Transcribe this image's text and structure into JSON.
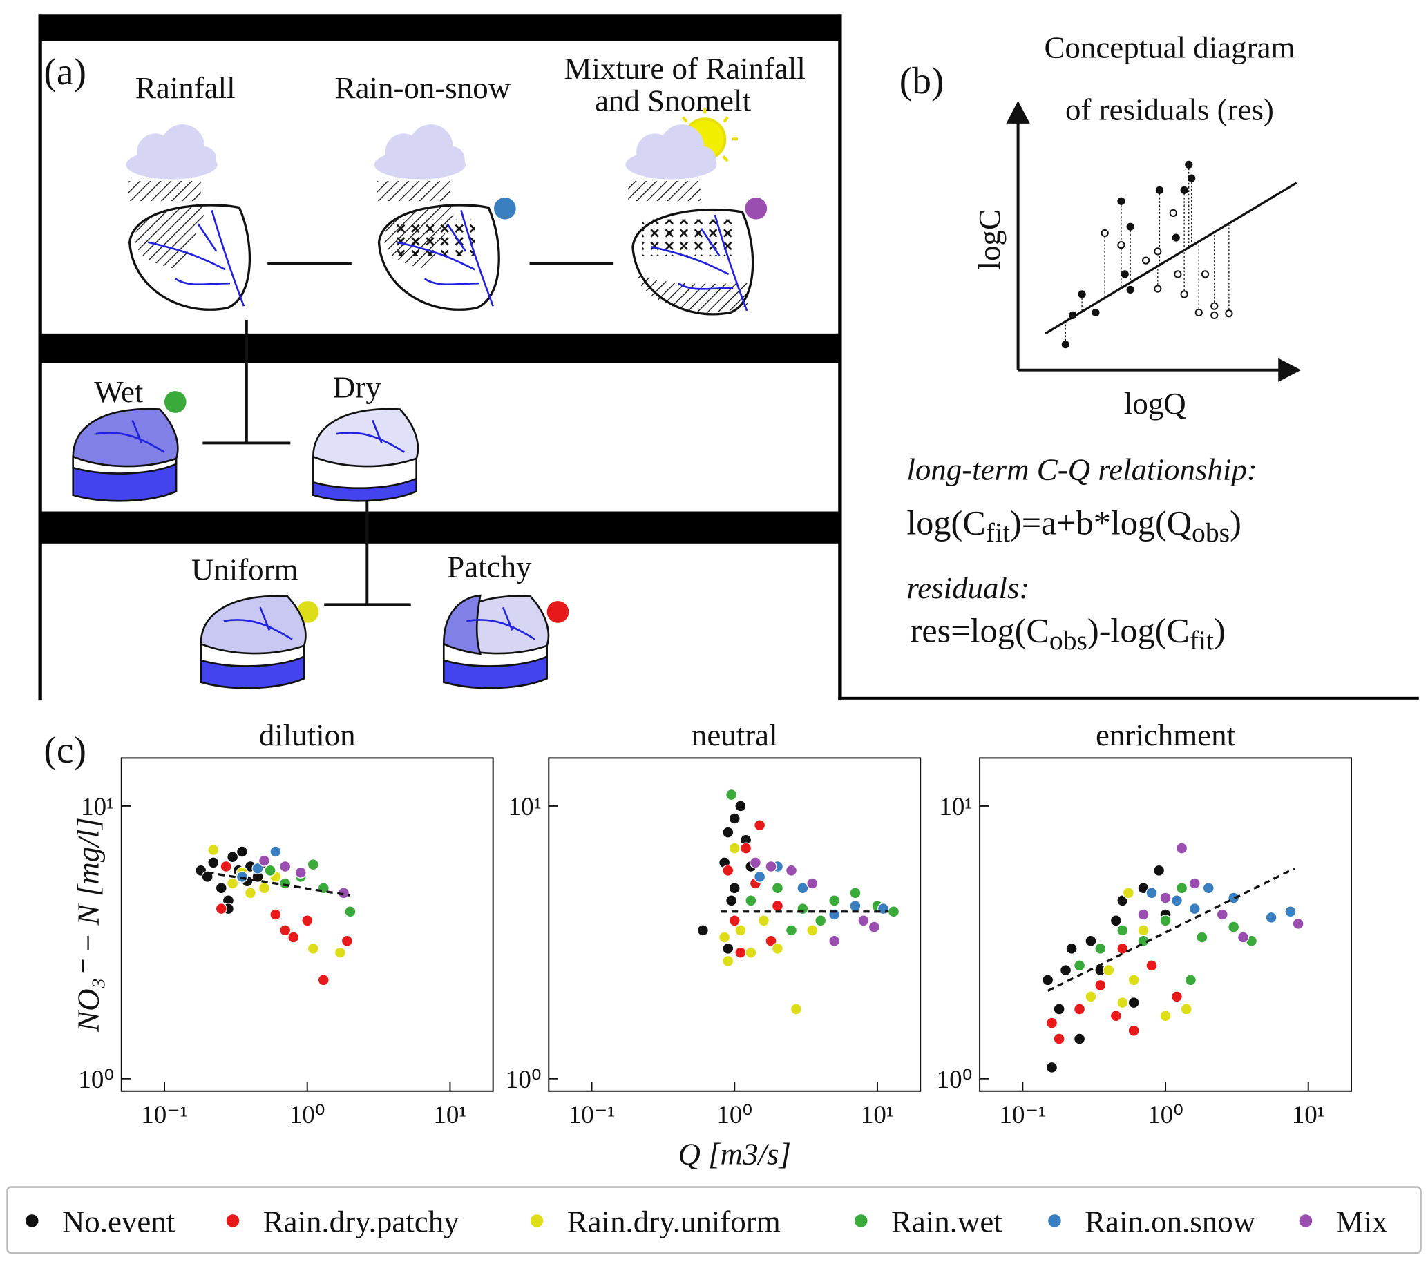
{
  "panel_a": {
    "label": "(a)",
    "rainfall": "Rainfall",
    "rain_on_snow": "Rain-on-snow",
    "mixture_line1": "Mixture of Rainfall",
    "mixture_line2": "and Snomelt",
    "wet": "Wet",
    "dry": "Dry",
    "uniform": "Uniform",
    "patchy": "Patchy"
  },
  "panel_b": {
    "label": "(b)",
    "title_line1": "Conceptual diagram",
    "title_line2": "of residuals (res)",
    "ylabel": "logC",
    "xlabel": "logQ",
    "relationship_label": "long-term C-Q relationship:",
    "relationship": [
      "log(C",
      "fit",
      ")=a+b*log(Q",
      "obs",
      ")"
    ],
    "residuals_label": "residuals:",
    "residuals": [
      "res=log(C",
      "obs",
      ")-log(C",
      "fit",
      ")"
    ]
  },
  "panel_c": {
    "label": "(c)"
  },
  "chart_data": [
    {
      "type": "scatter",
      "title": "dilution",
      "ylabel": "NO₃⁻ − N [mg/l]",
      "xscale": "log",
      "yscale": "log",
      "xlim": [
        0.05,
        20
      ],
      "ylim": [
        0.9,
        15
      ],
      "xticks": [
        {
          "value": 0.1,
          "label": "10⁻¹"
        },
        {
          "value": 1,
          "label": "10⁰"
        },
        {
          "value": 10,
          "label": "10¹"
        }
      ],
      "yticks": [
        {
          "value": 1,
          "label": "10⁰"
        },
        {
          "value": 10,
          "label": "10¹"
        }
      ],
      "fit": {
        "x": [
          0.2,
          2
        ],
        "y": [
          5.7,
          4.7
        ]
      },
      "series": [
        {
          "name": "No.event",
          "color": "#111111",
          "x": [
            0.18,
            0.2,
            0.22,
            0.25,
            0.28,
            0.3,
            0.33,
            0.35,
            0.38,
            0.4,
            0.45,
            0.5,
            0.28
          ],
          "y": [
            5.8,
            5.5,
            6.2,
            5.0,
            4.5,
            6.5,
            5.8,
            6.8,
            5.3,
            6.0,
            5.5,
            6.2,
            4.2
          ]
        },
        {
          "name": "Rain.dry.patchy",
          "color": "#e8191b",
          "x": [
            0.25,
            0.27,
            0.6,
            0.7,
            0.8,
            1.0,
            1.3,
            1.9
          ],
          "y": [
            4.2,
            6.0,
            4.0,
            3.5,
            3.3,
            3.8,
            2.3,
            3.2
          ]
        },
        {
          "name": "Rain.dry.uniform",
          "color": "#dddd1a",
          "x": [
            0.22,
            0.3,
            0.4,
            0.5,
            0.6,
            1.1,
            1.7,
            0.35
          ],
          "y": [
            6.9,
            5.2,
            4.8,
            5.0,
            5.5,
            3.0,
            2.9,
            5.7
          ]
        },
        {
          "name": "Rain.wet",
          "color": "#3aaa3a",
          "x": [
            0.55,
            0.7,
            0.9,
            1.1,
            1.3,
            2.0
          ],
          "y": [
            5.8,
            5.2,
            5.5,
            6.1,
            5.0,
            4.1
          ]
        },
        {
          "name": "Rain.on.snow",
          "color": "#3a80c0",
          "x": [
            0.6,
            0.45,
            0.35
          ],
          "y": [
            6.8,
            5.9,
            5.5
          ]
        },
        {
          "name": "Mix",
          "color": "#9a4fb0",
          "x": [
            0.5,
            0.7,
            0.9,
            1.8
          ],
          "y": [
            6.3,
            6.0,
            5.7,
            4.8
          ]
        }
      ]
    },
    {
      "type": "scatter",
      "title": "neutral",
      "xlabel": "Q [m3/s]",
      "xscale": "log",
      "yscale": "log",
      "xlim": [
        0.05,
        20
      ],
      "ylim": [
        0.9,
        15
      ],
      "xticks": [
        {
          "value": 0.1,
          "label": "10⁻¹"
        },
        {
          "value": 1,
          "label": "10⁰"
        },
        {
          "value": 10,
          "label": "10¹"
        }
      ],
      "yticks": [
        {
          "value": 1,
          "label": "10⁰"
        },
        {
          "value": 10,
          "label": "10¹"
        }
      ],
      "fit": {
        "x": [
          0.8,
          12
        ],
        "y": [
          4.1,
          4.1
        ]
      },
      "series": [
        {
          "x": [
            0.6,
            0.85,
            0.9,
            1.0,
            1.1,
            1.2,
            1.0,
            0.9,
            1.3,
            0.95
          ],
          "y": [
            3.5,
            6.2,
            8.0,
            9.0,
            10.0,
            7.5,
            5.0,
            3.0,
            6.0,
            4.5
          ]
        },
        {
          "x": [
            0.9,
            1.0,
            1.2,
            1.5,
            1.8,
            2.0,
            1.1,
            1.4
          ],
          "y": [
            5.8,
            3.8,
            7.0,
            8.5,
            3.2,
            4.3,
            2.9,
            5.2
          ]
        },
        {
          "x": [
            0.85,
            0.9,
            1.0,
            1.1,
            1.3,
            1.6,
            2.0,
            2.7,
            3.5
          ],
          "y": [
            3.3,
            2.7,
            7.0,
            3.5,
            2.9,
            3.8,
            3.0,
            1.8,
            3.5
          ]
        },
        {
          "x": [
            0.95,
            1.3,
            2,
            3,
            4,
            5,
            7,
            10,
            13,
            2.5
          ],
          "y": [
            11.0,
            4.5,
            5.0,
            4.2,
            3.8,
            4.5,
            4.8,
            4.3,
            4.1,
            3.5
          ]
        },
        {
          "x": [
            1.5,
            3,
            5,
            7,
            11,
            2
          ],
          "y": [
            5.5,
            5.0,
            4.0,
            4.3,
            4.2,
            6.0
          ]
        },
        {
          "x": [
            1.8,
            2.5,
            3.5,
            5,
            8,
            9.5,
            1.4
          ],
          "y": [
            6.0,
            5.8,
            5.2,
            3.2,
            3.8,
            3.6,
            6.2
          ]
        }
      ]
    },
    {
      "type": "scatter",
      "title": "enrichment",
      "xscale": "log",
      "yscale": "log",
      "xlim": [
        0.05,
        20
      ],
      "ylim": [
        0.9,
        15
      ],
      "xticks": [
        {
          "value": 0.1,
          "label": "10⁻¹"
        },
        {
          "value": 1,
          "label": "10⁰"
        },
        {
          "value": 10,
          "label": "10¹"
        }
      ],
      "yticks": [
        {
          "value": 1,
          "label": "10⁰"
        },
        {
          "value": 10,
          "label": "10¹"
        }
      ],
      "fit": {
        "x": [
          0.15,
          8
        ],
        "y": [
          2.1,
          5.9
        ]
      },
      "series": [
        {
          "x": [
            0.15,
            0.16,
            0.18,
            0.2,
            0.22,
            0.25,
            0.3,
            0.35,
            0.45,
            0.5,
            0.7,
            0.9,
            0.6,
            1.0
          ],
          "y": [
            2.3,
            1.1,
            1.8,
            2.5,
            3.0,
            1.4,
            3.2,
            2.5,
            3.8,
            4.5,
            5.0,
            5.8,
            1.9,
            4.0
          ]
        },
        {
          "x": [
            0.16,
            0.18,
            0.25,
            0.35,
            0.45,
            0.6,
            0.8,
            1.2,
            0.5
          ],
          "y": [
            1.6,
            1.4,
            1.8,
            2.2,
            1.7,
            1.5,
            2.6,
            2.0,
            3.0
          ]
        },
        {
          "x": [
            0.3,
            0.4,
            0.5,
            0.6,
            0.7,
            1.0,
            1.4,
            0.55
          ],
          "y": [
            2.0,
            2.5,
            1.9,
            2.3,
            3.5,
            1.7,
            1.8,
            4.8
          ]
        },
        {
          "x": [
            0.25,
            0.35,
            0.5,
            0.7,
            1.0,
            1.3,
            1.8,
            3,
            4,
            1.5
          ],
          "y": [
            2.6,
            3.0,
            3.5,
            3.2,
            3.8,
            5.0,
            3.3,
            3.6,
            3.2,
            2.3
          ]
        },
        {
          "x": [
            0.8,
            1.2,
            2,
            3,
            5.5,
            7.5,
            1.6
          ],
          "y": [
            4.8,
            4.5,
            5.0,
            4.6,
            3.9,
            4.1,
            4.2
          ]
        },
        {
          "x": [
            0.7,
            1.3,
            1.6,
            2.5,
            3.5,
            8.5,
            1.0
          ],
          "y": [
            4.0,
            7.0,
            5.2,
            4.0,
            3.3,
            3.7,
            4.6
          ]
        }
      ]
    }
  ]
}
